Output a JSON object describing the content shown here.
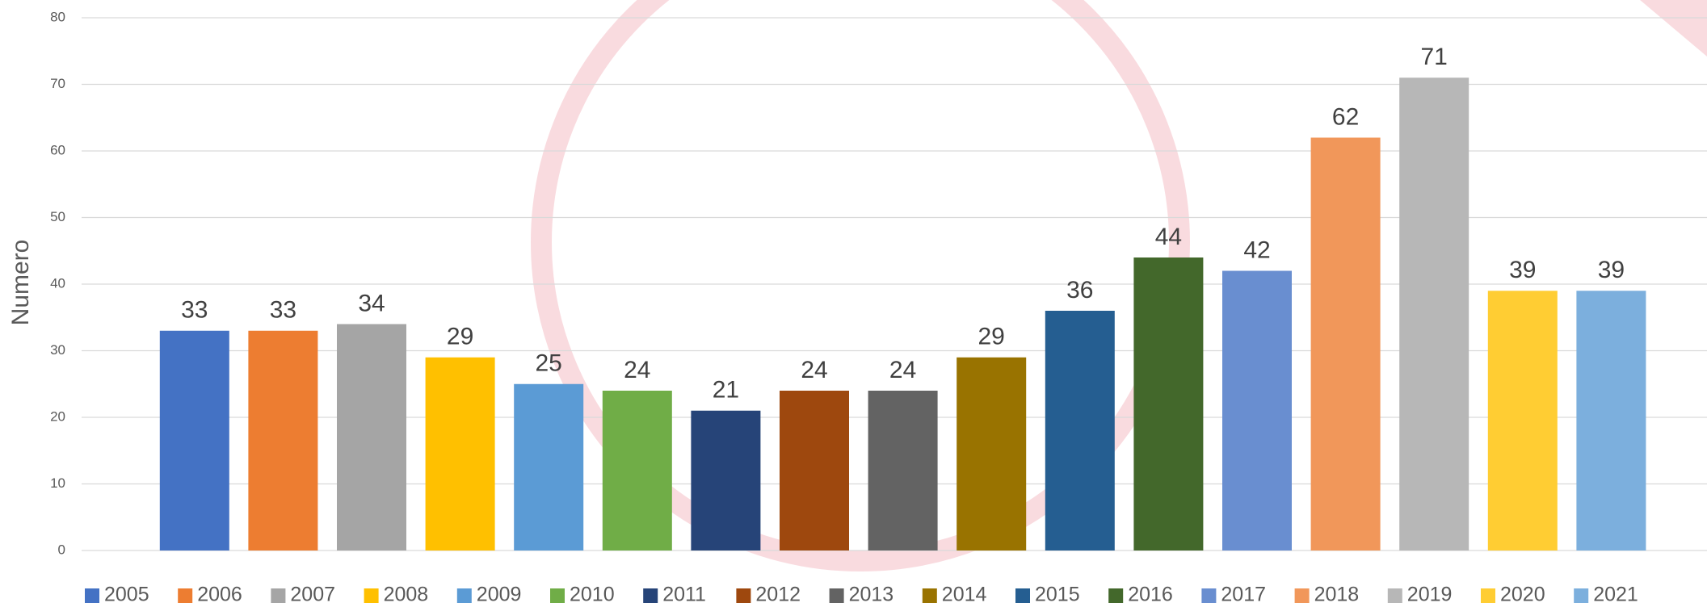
{
  "chart_data": {
    "type": "bar",
    "y_label": "Numero",
    "categories": [
      null
    ],
    "series": [
      {
        "name": "2005",
        "color": "#4472c4",
        "values": [
          33
        ]
      },
      {
        "name": "2006",
        "color": "#ed7d31",
        "values": [
          33
        ]
      },
      {
        "name": "2007",
        "color": "#a5a5a5",
        "values": [
          34
        ]
      },
      {
        "name": "2008",
        "color": "#ffc000",
        "values": [
          29
        ]
      },
      {
        "name": "2009",
        "color": "#5b9bd5",
        "values": [
          25
        ]
      },
      {
        "name": "2010",
        "color": "#70ad47",
        "values": [
          24
        ]
      },
      {
        "name": "2011",
        "color": "#264478",
        "values": [
          21
        ]
      },
      {
        "name": "2012",
        "color": "#9e480e",
        "values": [
          24
        ]
      },
      {
        "name": "2013",
        "color": "#636363",
        "values": [
          24
        ]
      },
      {
        "name": "2014",
        "color": "#997300",
        "values": [
          29
        ]
      },
      {
        "name": "2015",
        "color": "#255e91",
        "values": [
          36
        ]
      },
      {
        "name": "2016",
        "color": "#43682b",
        "values": [
          44
        ]
      },
      {
        "name": "2017",
        "color": "#698ed0",
        "values": [
          42
        ]
      },
      {
        "name": "2018",
        "color": "#f1975a",
        "values": [
          62
        ]
      },
      {
        "name": "2019",
        "color": "#b7b7b7",
        "values": [
          71
        ]
      },
      {
        "name": "2020",
        "color": "#ffcd33",
        "values": [
          39
        ]
      },
      {
        "name": "2021",
        "color": "#7cafdd",
        "values": [
          39
        ]
      }
    ],
    "ylim": [
      0,
      80
    ],
    "yticks": [
      0,
      10,
      20,
      30,
      40,
      50,
      60,
      70,
      80
    ],
    "grid": true,
    "legend": "bottom",
    "data_labels": true
  }
}
